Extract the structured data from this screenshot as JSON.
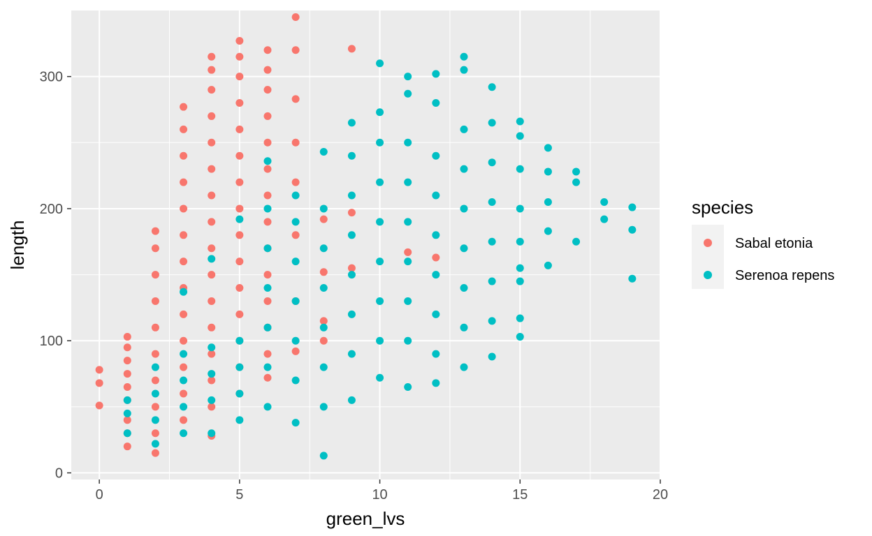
{
  "chart_data": {
    "type": "scatter",
    "title": "",
    "xlabel": "green_lvs",
    "ylabel": "length",
    "xlim": [
      -1,
      20
    ],
    "ylim": [
      -5,
      350
    ],
    "x_ticks": [
      0,
      5,
      10,
      15,
      20
    ],
    "x_tick_labels": [
      "0",
      "5",
      "10",
      "15",
      "20"
    ],
    "y_ticks": [
      0,
      100,
      200,
      300
    ],
    "y_tick_labels": [
      "0",
      "100",
      "200",
      "300"
    ],
    "grid": true,
    "legend": {
      "title": "species",
      "placement": "right"
    },
    "series": [
      {
        "name": "Sabal etonia",
        "color": "#f8766d",
        "points": [
          [
            0,
            68
          ],
          [
            0,
            78
          ],
          [
            0,
            51
          ],
          [
            1,
            20
          ],
          [
            1,
            40
          ],
          [
            1,
            55
          ],
          [
            1,
            65
          ],
          [
            1,
            75
          ],
          [
            1,
            85
          ],
          [
            1,
            95
          ],
          [
            1,
            103
          ],
          [
            1,
            30
          ],
          [
            2,
            15
          ],
          [
            2,
            30
          ],
          [
            2,
            50
          ],
          [
            2,
            70
          ],
          [
            2,
            90
          ],
          [
            2,
            110
          ],
          [
            2,
            130
          ],
          [
            2,
            150
          ],
          [
            2,
            170
          ],
          [
            2,
            183
          ],
          [
            3,
            40
          ],
          [
            3,
            60
          ],
          [
            3,
            80
          ],
          [
            3,
            100
          ],
          [
            3,
            120
          ],
          [
            3,
            140
          ],
          [
            3,
            160
          ],
          [
            3,
            180
          ],
          [
            3,
            200
          ],
          [
            3,
            220
          ],
          [
            3,
            240
          ],
          [
            3,
            260
          ],
          [
            3,
            277
          ],
          [
            4,
            28
          ],
          [
            4,
            50
          ],
          [
            4,
            70
          ],
          [
            4,
            90
          ],
          [
            4,
            110
          ],
          [
            4,
            130
          ],
          [
            4,
            150
          ],
          [
            4,
            170
          ],
          [
            4,
            190
          ],
          [
            4,
            210
          ],
          [
            4,
            230
          ],
          [
            4,
            250
          ],
          [
            4,
            270
          ],
          [
            4,
            290
          ],
          [
            4,
            305
          ],
          [
            4,
            315
          ],
          [
            5,
            60
          ],
          [
            5,
            80
          ],
          [
            5,
            100
          ],
          [
            5,
            120
          ],
          [
            5,
            140
          ],
          [
            5,
            160
          ],
          [
            5,
            180
          ],
          [
            5,
            200
          ],
          [
            5,
            220
          ],
          [
            5,
            240
          ],
          [
            5,
            260
          ],
          [
            5,
            280
          ],
          [
            5,
            300
          ],
          [
            5,
            315
          ],
          [
            5,
            327
          ],
          [
            6,
            72
          ],
          [
            6,
            90
          ],
          [
            6,
            110
          ],
          [
            6,
            130
          ],
          [
            6,
            150
          ],
          [
            6,
            170
          ],
          [
            6,
            190
          ],
          [
            6,
            210
          ],
          [
            6,
            230
          ],
          [
            6,
            250
          ],
          [
            6,
            270
          ],
          [
            6,
            290
          ],
          [
            6,
            305
          ],
          [
            6,
            320
          ],
          [
            7,
            92
          ],
          [
            7,
            130
          ],
          [
            7,
            180
          ],
          [
            7,
            220
          ],
          [
            7,
            250
          ],
          [
            7,
            283
          ],
          [
            7,
            320
          ],
          [
            7,
            345
          ],
          [
            8,
            100
          ],
          [
            8,
            115
          ],
          [
            8,
            152
          ],
          [
            8,
            192
          ],
          [
            9,
            155
          ],
          [
            9,
            197
          ],
          [
            9,
            321
          ],
          [
            11,
            167
          ],
          [
            12,
            163
          ]
        ]
      },
      {
        "name": "Serenoa repens",
        "color": "#00bfc4",
        "points": [
          [
            1,
            30
          ],
          [
            1,
            45
          ],
          [
            1,
            55
          ],
          [
            2,
            22
          ],
          [
            2,
            40
          ],
          [
            2,
            60
          ],
          [
            2,
            80
          ],
          [
            3,
            30
          ],
          [
            3,
            50
          ],
          [
            3,
            70
          ],
          [
            3,
            90
          ],
          [
            3,
            137
          ],
          [
            4,
            30
          ],
          [
            4,
            55
          ],
          [
            4,
            75
          ],
          [
            4,
            95
          ],
          [
            4,
            162
          ],
          [
            5,
            40
          ],
          [
            5,
            60
          ],
          [
            5,
            80
          ],
          [
            5,
            100
          ],
          [
            5,
            192
          ],
          [
            6,
            50
          ],
          [
            6,
            80
          ],
          [
            6,
            110
          ],
          [
            6,
            140
          ],
          [
            6,
            170
          ],
          [
            6,
            200
          ],
          [
            6,
            236
          ],
          [
            7,
            38
          ],
          [
            7,
            70
          ],
          [
            7,
            100
          ],
          [
            7,
            130
          ],
          [
            7,
            160
          ],
          [
            7,
            190
          ],
          [
            7,
            210
          ],
          [
            8,
            50
          ],
          [
            8,
            80
          ],
          [
            8,
            110
          ],
          [
            8,
            140
          ],
          [
            8,
            170
          ],
          [
            8,
            200
          ],
          [
            8,
            243
          ],
          [
            8,
            13
          ],
          [
            9,
            55
          ],
          [
            9,
            90
          ],
          [
            9,
            120
          ],
          [
            9,
            150
          ],
          [
            9,
            180
          ],
          [
            9,
            210
          ],
          [
            9,
            240
          ],
          [
            9,
            265
          ],
          [
            10,
            72
          ],
          [
            10,
            100
          ],
          [
            10,
            130
          ],
          [
            10,
            160
          ],
          [
            10,
            190
          ],
          [
            10,
            220
          ],
          [
            10,
            250
          ],
          [
            10,
            273
          ],
          [
            10,
            310
          ],
          [
            11,
            65
          ],
          [
            11,
            100
          ],
          [
            11,
            130
          ],
          [
            11,
            160
          ],
          [
            11,
            190
          ],
          [
            11,
            220
          ],
          [
            11,
            250
          ],
          [
            11,
            287
          ],
          [
            11,
            300
          ],
          [
            12,
            68
          ],
          [
            12,
            90
          ],
          [
            12,
            120
          ],
          [
            12,
            150
          ],
          [
            12,
            180
          ],
          [
            12,
            210
          ],
          [
            12,
            240
          ],
          [
            12,
            280
          ],
          [
            12,
            302
          ],
          [
            13,
            80
          ],
          [
            13,
            110
          ],
          [
            13,
            140
          ],
          [
            13,
            170
          ],
          [
            13,
            200
          ],
          [
            13,
            230
          ],
          [
            13,
            260
          ],
          [
            13,
            305
          ],
          [
            13,
            315
          ],
          [
            14,
            88
          ],
          [
            14,
            115
          ],
          [
            14,
            145
          ],
          [
            14,
            175
          ],
          [
            14,
            205
          ],
          [
            14,
            235
          ],
          [
            14,
            265
          ],
          [
            14,
            292
          ],
          [
            15,
            103
          ],
          [
            15,
            117
          ],
          [
            15,
            145
          ],
          [
            15,
            155
          ],
          [
            15,
            175
          ],
          [
            15,
            200
          ],
          [
            15,
            230
          ],
          [
            15,
            255
          ],
          [
            15,
            266
          ],
          [
            16,
            157
          ],
          [
            16,
            183
          ],
          [
            16,
            205
          ],
          [
            16,
            228
          ],
          [
            16,
            246
          ],
          [
            17,
            175
          ],
          [
            17,
            220
          ],
          [
            17,
            228
          ],
          [
            18,
            192
          ],
          [
            18,
            205
          ],
          [
            19,
            147
          ],
          [
            19,
            184
          ],
          [
            19,
            201
          ]
        ]
      }
    ]
  }
}
